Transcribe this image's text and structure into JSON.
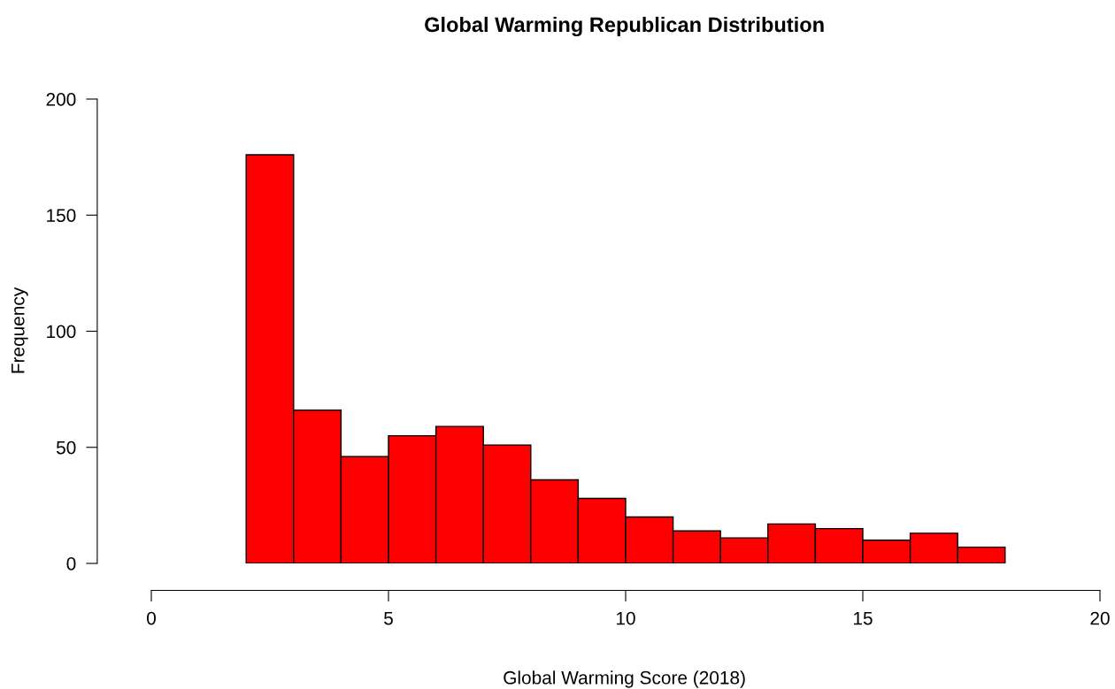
{
  "chart_data": {
    "type": "histogram",
    "title": "Global Warming Republican Distribution",
    "xlabel": "Global Warming Score (2018)",
    "ylabel": "Frequency",
    "bins": [
      2,
      3,
      4,
      5,
      6,
      7,
      8,
      9,
      10,
      11,
      12,
      13,
      14,
      15,
      16,
      17,
      18
    ],
    "values": [
      176,
      66,
      46,
      55,
      59,
      51,
      36,
      28,
      20,
      14,
      11,
      17,
      15,
      10,
      13,
      7
    ],
    "color": "#ff0000",
    "xlim": [
      0,
      20
    ],
    "xticks": [
      0,
      5,
      10,
      15,
      20
    ],
    "ylim": [
      0,
      200
    ],
    "yticks": [
      0,
      50,
      100,
      150,
      200
    ],
    "grid": false
  }
}
